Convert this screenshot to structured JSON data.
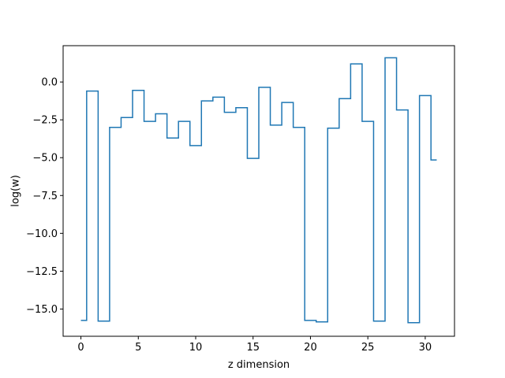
{
  "chart_data": {
    "type": "line",
    "drawstyle": "steps-mid",
    "title": "",
    "xlabel": "z dimension",
    "ylabel": "log(w)",
    "xlim": [
      -1.55,
      32.55
    ],
    "ylim": [
      -16.8,
      2.4
    ],
    "xticks": [
      0,
      5,
      10,
      15,
      20,
      25,
      30
    ],
    "xtick_labels": [
      "0",
      "5",
      "10",
      "15",
      "20",
      "25",
      "30"
    ],
    "yticks": [
      0.0,
      -2.5,
      -5.0,
      -7.5,
      -10.0,
      -12.5,
      -15.0
    ],
    "ytick_labels": [
      "0.0",
      "−2.5",
      "−5.0",
      "−7.5",
      "−10.0",
      "−12.5",
      "−15.0"
    ],
    "grid": false,
    "line_color": "#1f77b4",
    "series": [
      {
        "x": [
          0,
          1,
          2,
          3,
          4,
          5,
          6,
          7,
          8,
          9,
          10,
          11,
          12,
          13,
          14,
          15,
          16,
          17,
          18,
          19,
          20,
          21,
          22,
          23,
          24,
          25,
          26,
          27,
          28,
          29,
          30,
          31
        ],
        "values": [
          -15.75,
          -0.6,
          -15.8,
          -3.0,
          -2.35,
          -0.55,
          -2.6,
          -2.1,
          -3.7,
          -2.6,
          -4.2,
          -1.25,
          -1.0,
          -2.0,
          -1.7,
          -5.05,
          -0.35,
          -2.85,
          -1.35,
          -3.0,
          -15.75,
          -15.85,
          -3.05,
          -1.1,
          1.2,
          -2.6,
          -15.8,
          1.6,
          -1.85,
          -15.9,
          -0.9,
          -5.15
        ]
      }
    ]
  }
}
